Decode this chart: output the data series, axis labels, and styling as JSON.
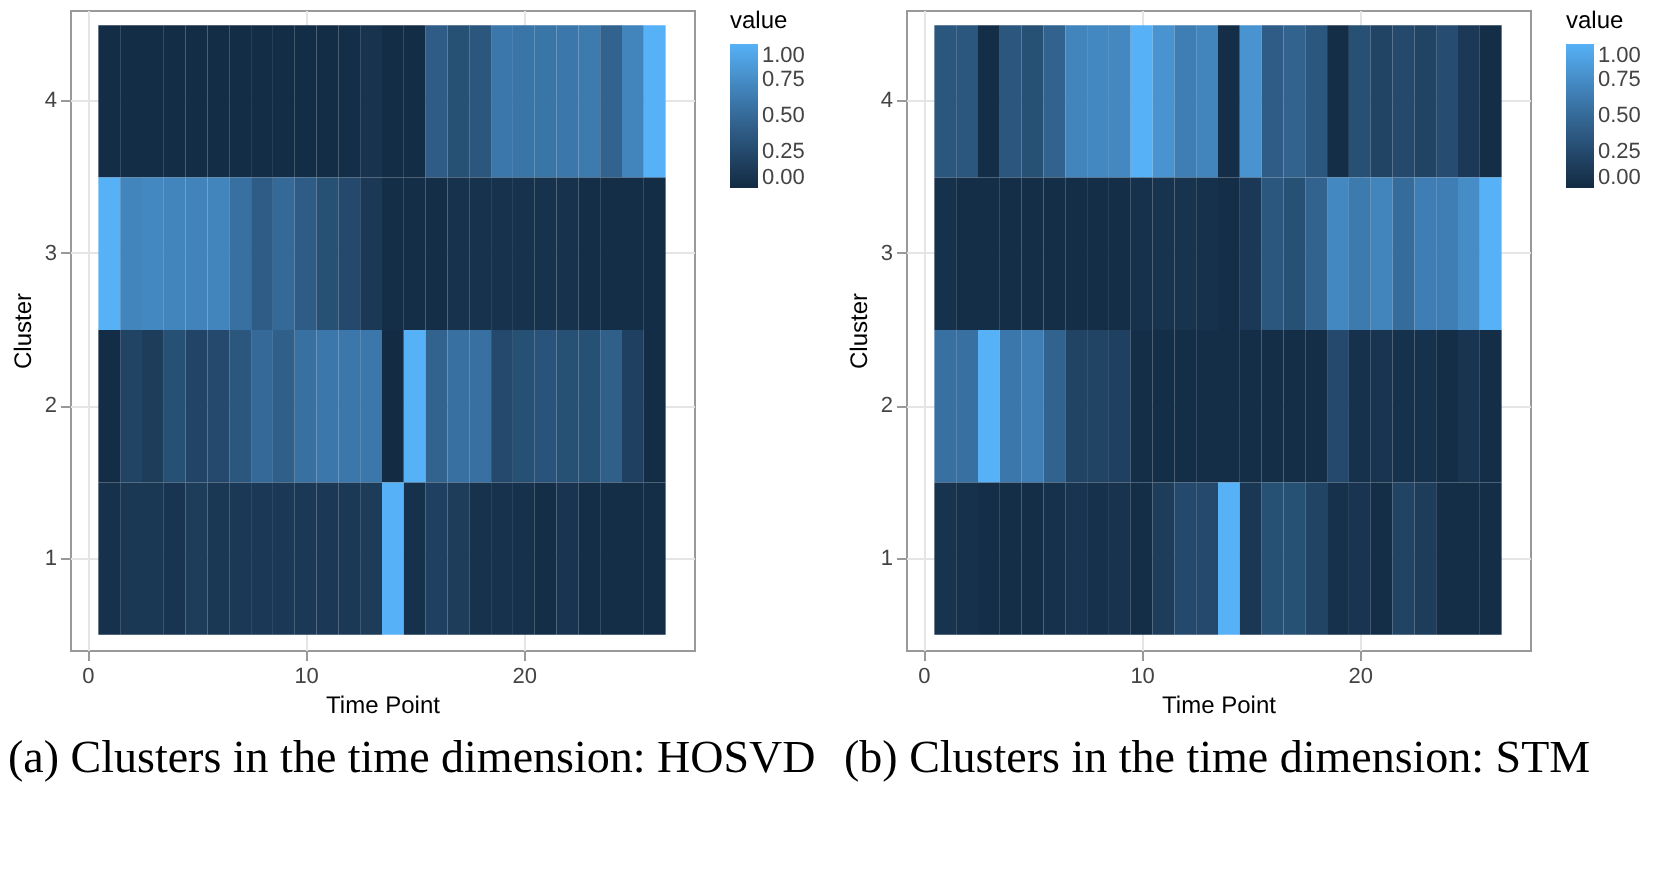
{
  "chart_data": [
    {
      "type": "heatmap",
      "title": "(a) Clusters in the time dimension: HOSVD",
      "xlabel": "Time Point",
      "ylabel": "Cluster",
      "legend_title": "value",
      "grid": true,
      "x": [
        1,
        2,
        3,
        4,
        5,
        6,
        7,
        8,
        9,
        10,
        11,
        12,
        13,
        14,
        15,
        16,
        17,
        18,
        19,
        20,
        21,
        22,
        23,
        24,
        25,
        26
      ],
      "xlim": [
        -0.8,
        27.8
      ],
      "xticks": [
        0,
        10,
        20
      ],
      "y_categories": [
        "4",
        "3",
        "2",
        "1"
      ],
      "clim": [
        0,
        1
      ],
      "cticks": [
        {
          "value": 0,
          "label": "0.00"
        },
        {
          "value": 0.25,
          "label": "0.25"
        },
        {
          "value": 0.5,
          "label": "0.50"
        },
        {
          "value": 0.75,
          "label": "0.75"
        },
        {
          "value": 1,
          "label": "1.00"
        }
      ],
      "colors": [
        "#132b43",
        "#56b1f7"
      ],
      "cells": [
        [
          0.02,
          0.02,
          0.02,
          0.02,
          0.02,
          0.02,
          0.02,
          0.02,
          0.02,
          0.02,
          0.02,
          0.03,
          0.07,
          0.02,
          0.02,
          0.4,
          0.3,
          0.35,
          0.6,
          0.58,
          0.58,
          0.6,
          0.62,
          0.45,
          0.7,
          1.0
        ],
        [
          1.0,
          0.7,
          0.72,
          0.7,
          0.68,
          0.7,
          0.55,
          0.4,
          0.5,
          0.4,
          0.3,
          0.25,
          0.12,
          0.03,
          0.03,
          0.03,
          0.06,
          0.06,
          0.06,
          0.06,
          0.06,
          0.06,
          0.03,
          0.03,
          0.03,
          0.02
        ],
        [
          0.02,
          0.2,
          0.15,
          0.3,
          0.22,
          0.25,
          0.35,
          0.5,
          0.42,
          0.55,
          0.6,
          0.6,
          0.6,
          0.0,
          1.0,
          0.45,
          0.55,
          0.55,
          0.25,
          0.3,
          0.33,
          0.3,
          0.3,
          0.42,
          0.18,
          0.02
        ],
        [
          0.05,
          0.1,
          0.1,
          0.08,
          0.15,
          0.1,
          0.12,
          0.12,
          0.12,
          0.12,
          0.12,
          0.12,
          0.14,
          1.0,
          0.05,
          0.18,
          0.15,
          0.06,
          0.06,
          0.05,
          0.03,
          0.08,
          0.03,
          0.03,
          0.03,
          0.03
        ]
      ]
    },
    {
      "type": "heatmap",
      "title": "(b) Clusters in the time dimension: STM",
      "xlabel": "Time Point",
      "ylabel": "Cluster",
      "legend_title": "value",
      "grid": true,
      "x": [
        1,
        2,
        3,
        4,
        5,
        6,
        7,
        8,
        9,
        10,
        11,
        12,
        13,
        14,
        15,
        16,
        17,
        18,
        19,
        20,
        21,
        22,
        23,
        24,
        25,
        26
      ],
      "xlim": [
        -0.8,
        27.8
      ],
      "xticks": [
        0,
        10,
        20
      ],
      "y_categories": [
        "4",
        "3",
        "2",
        "1"
      ],
      "clim": [
        0,
        1
      ],
      "cticks": [
        {
          "value": 0,
          "label": "0.00"
        },
        {
          "value": 0.25,
          "label": "0.25"
        },
        {
          "value": 0.5,
          "label": "0.50"
        },
        {
          "value": 0.75,
          "label": "0.75"
        },
        {
          "value": 1,
          "label": "1.00"
        }
      ],
      "colors": [
        "#132b43",
        "#56b1f7"
      ],
      "cells": [
        [
          0.35,
          0.35,
          0.03,
          0.35,
          0.3,
          0.45,
          0.7,
          0.72,
          0.72,
          1.0,
          0.8,
          0.65,
          0.7,
          0.03,
          0.8,
          0.4,
          0.45,
          0.35,
          0.03,
          0.3,
          0.2,
          0.25,
          0.2,
          0.28,
          0.12,
          0.03
        ],
        [
          0.05,
          0.03,
          0.03,
          0.03,
          0.03,
          0.03,
          0.03,
          0.03,
          0.03,
          0.05,
          0.07,
          0.07,
          0.05,
          0.03,
          0.12,
          0.35,
          0.3,
          0.45,
          0.72,
          0.62,
          0.7,
          0.52,
          0.65,
          0.65,
          0.75,
          1.0
        ],
        [
          0.55,
          0.55,
          1.0,
          0.6,
          0.65,
          0.45,
          0.2,
          0.2,
          0.18,
          0.03,
          0.03,
          0.03,
          0.03,
          0.03,
          0.03,
          0.03,
          0.03,
          0.03,
          0.25,
          0.05,
          0.08,
          0.05,
          0.05,
          0.03,
          0.08,
          0.03
        ],
        [
          0.07,
          0.05,
          0.03,
          0.03,
          0.03,
          0.05,
          0.08,
          0.05,
          0.07,
          0.03,
          0.15,
          0.25,
          0.25,
          1.0,
          0.1,
          0.3,
          0.3,
          0.2,
          0.05,
          0.08,
          0.03,
          0.2,
          0.15,
          0.03,
          0.03,
          0.03
        ]
      ]
    }
  ]
}
